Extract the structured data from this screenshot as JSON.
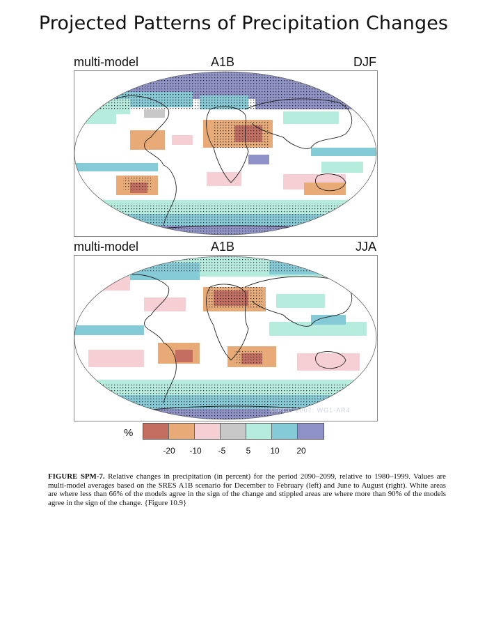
{
  "title": "Projected Patterns of Precipitation Changes",
  "panels": [
    {
      "model": "multi-model",
      "scenario": "A1B",
      "season": "DJF"
    },
    {
      "model": "multi-model",
      "scenario": "A1B",
      "season": "JJA"
    }
  ],
  "legend": {
    "unit": "%",
    "colors": [
      "#c46e62",
      "#e8aa76",
      "#f6cfd4",
      "#c8c8c8",
      "#b6ecde",
      "#85cad7",
      "#8e92c7"
    ],
    "ticks": [
      "-20",
      "-10",
      "-5",
      "5",
      "10",
      "20"
    ]
  },
  "watermark": "©IPCC 2007: WG1-AR4",
  "caption": {
    "label": "FIGURE SPM-7.",
    "text": " Relative changes in precipitation (in percent) for the period 2090–2099, relative to 1980–1999. Values are multi-model averages based on the SRES A1B scenario for December to February (left) and June to August (right). White areas are where less than 66% of the models agree in the sign of the change and stippled areas are where more than 90% of the models agree in the sign of the change.  {Figure 10.9}"
  }
}
